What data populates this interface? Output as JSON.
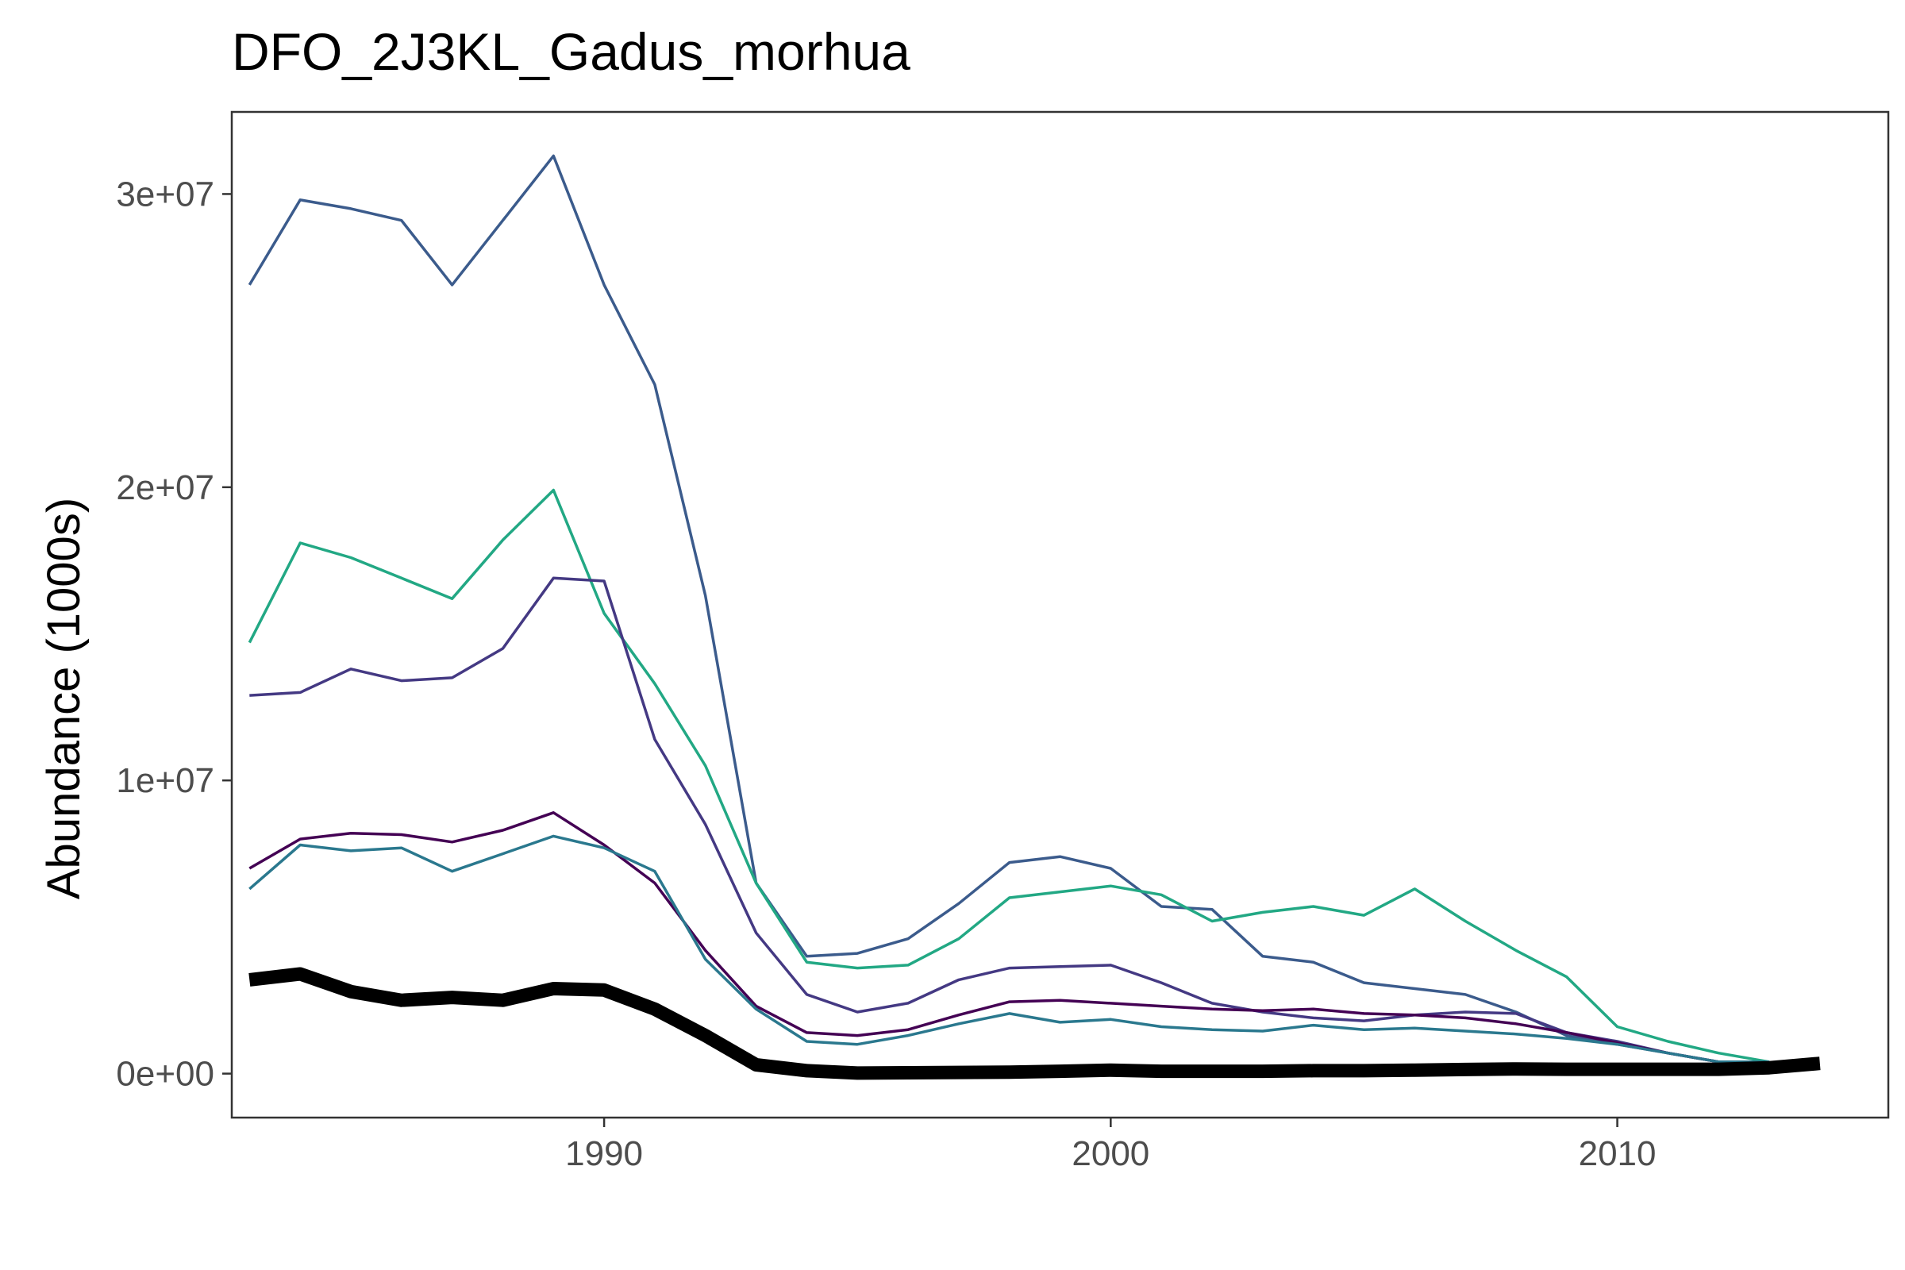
{
  "chart_data": {
    "type": "line",
    "title": "DFO_2J3KL_Gadus_morhua",
    "xlabel": "",
    "ylabel": "Abundance (1000s)",
    "xlim": [
      1982.65,
      2015.35
    ],
    "ylim": [
      -1500000,
      32800000
    ],
    "x_ticks": [
      1990,
      2000,
      2010
    ],
    "x_tick_labels": [
      "1990",
      "2000",
      "2010"
    ],
    "y_ticks": [
      0,
      10000000,
      20000000,
      30000000
    ],
    "y_tick_labels": [
      "0e+00",
      "1e+07",
      "2e+07",
      "3e+07"
    ],
    "grid": false,
    "legend": "none",
    "series": [
      {
        "color": "#3b5b8c",
        "width": "thin",
        "x": [
          1983,
          1984,
          1985,
          1986,
          1987,
          1988,
          1989,
          1990,
          1991,
          1992,
          1993,
          1994,
          1995,
          1996,
          1997,
          1998,
          1999,
          2000,
          2001,
          2002,
          2003,
          2004,
          2005,
          2006,
          2007,
          2008,
          2009,
          2010,
          2011,
          2012,
          2013
        ],
        "y": [
          26900000,
          29800000,
          29500000,
          29100000,
          26900000,
          29100000,
          31300000,
          26900000,
          23500000,
          16300000,
          6500000,
          4000000,
          4100000,
          4600000,
          5800000,
          7200000,
          7400000,
          7000000,
          5700000,
          5600000,
          4000000,
          3800000,
          3100000,
          2900000,
          2700000,
          2100000,
          1300000,
          1000000,
          700000,
          400000,
          400000
        ]
      },
      {
        "color": "#22a884",
        "width": "thin",
        "x": [
          1983,
          1984,
          1985,
          1986,
          1987,
          1988,
          1989,
          1990,
          1991,
          1992,
          1993,
          1994,
          1995,
          1996,
          1997,
          1998,
          1999,
          2000,
          2001,
          2002,
          2003,
          2004,
          2005,
          2006,
          2007,
          2008,
          2009,
          2010,
          2011,
          2012,
          2013
        ],
        "y": [
          14700000,
          18100000,
          17600000,
          16900000,
          16200000,
          18200000,
          19900000,
          15700000,
          13300000,
          10500000,
          6500000,
          3800000,
          3600000,
          3700000,
          4600000,
          6000000,
          6200000,
          6400000,
          6100000,
          5200000,
          5500000,
          5700000,
          5400000,
          6300000,
          5200000,
          4200000,
          3300000,
          1600000,
          1100000,
          700000,
          400000
        ]
      },
      {
        "color": "#443983",
        "width": "thin",
        "x": [
          1983,
          1984,
          1985,
          1986,
          1987,
          1988,
          1989,
          1990,
          1991,
          1992,
          1993,
          1994,
          1995,
          1996,
          1997,
          1998,
          1999,
          2000,
          2001,
          2002,
          2003,
          2004,
          2005,
          2006,
          2007,
          2008,
          2009,
          2010,
          2011,
          2012,
          2013
        ],
        "y": [
          12900000,
          13000000,
          13800000,
          13400000,
          13500000,
          14500000,
          16900000,
          16800000,
          11400000,
          8500000,
          4800000,
          2700000,
          2100000,
          2400000,
          3200000,
          3600000,
          3650000,
          3700000,
          3100000,
          2400000,
          2100000,
          1900000,
          1800000,
          2000000,
          2100000,
          2050000,
          1400000,
          1100000,
          700000,
          400000,
          400000
        ]
      },
      {
        "color": "#440154",
        "width": "thin",
        "x": [
          1983,
          1984,
          1985,
          1986,
          1987,
          1988,
          1989,
          1990,
          1991,
          1992,
          1993,
          1994,
          1995,
          1996,
          1997,
          1998,
          1999,
          2000,
          2001,
          2002,
          2003,
          2004,
          2005,
          2006,
          2007,
          2008,
          2009,
          2010,
          2011,
          2012,
          2013
        ],
        "y": [
          7000000,
          8000000,
          8200000,
          8150000,
          7900000,
          8300000,
          8900000,
          7800000,
          6500000,
          4200000,
          2300000,
          1400000,
          1300000,
          1500000,
          2000000,
          2450000,
          2500000,
          2400000,
          2300000,
          2200000,
          2150000,
          2200000,
          2050000,
          2000000,
          1900000,
          1700000,
          1400000,
          1050000,
          700000,
          400000,
          400000
        ]
      },
      {
        "color": "#2a788e",
        "width": "thin",
        "x": [
          1983,
          1984,
          1985,
          1986,
          1987,
          1988,
          1989,
          1990,
          1991,
          1992,
          1993,
          1994,
          1995,
          1996,
          1997,
          1998,
          1999,
          2000,
          2001,
          2002,
          2003,
          2004,
          2005,
          2006,
          2007,
          2008,
          2009,
          2010,
          2011,
          2012,
          2013
        ],
        "y": [
          6300000,
          7800000,
          7600000,
          7700000,
          6900000,
          7500000,
          8100000,
          7700000,
          6900000,
          3900000,
          2200000,
          1100000,
          1000000,
          1300000,
          1700000,
          2050000,
          1750000,
          1850000,
          1600000,
          1500000,
          1450000,
          1650000,
          1500000,
          1550000,
          1450000,
          1350000,
          1200000,
          1000000,
          700000,
          400000,
          400000
        ]
      },
      {
        "color": "#000000",
        "width": "thick",
        "x": [
          1983,
          1984,
          1985,
          1986,
          1987,
          1988,
          1989,
          1990,
          1991,
          1992,
          1993,
          1994,
          1995,
          1996,
          1997,
          1998,
          1999,
          2000,
          2001,
          2002,
          2003,
          2004,
          2005,
          2006,
          2007,
          2008,
          2009,
          2010,
          2011,
          2012,
          2013,
          2014
        ],
        "y": [
          3200000,
          3400000,
          2800000,
          2500000,
          2600000,
          2500000,
          2900000,
          2850000,
          2200000,
          1300000,
          300000,
          100000,
          20000,
          30000,
          40000,
          50000,
          80000,
          120000,
          80000,
          80000,
          80000,
          100000,
          100000,
          120000,
          140000,
          160000,
          150000,
          150000,
          150000,
          150000,
          200000,
          350000
        ]
      }
    ]
  }
}
